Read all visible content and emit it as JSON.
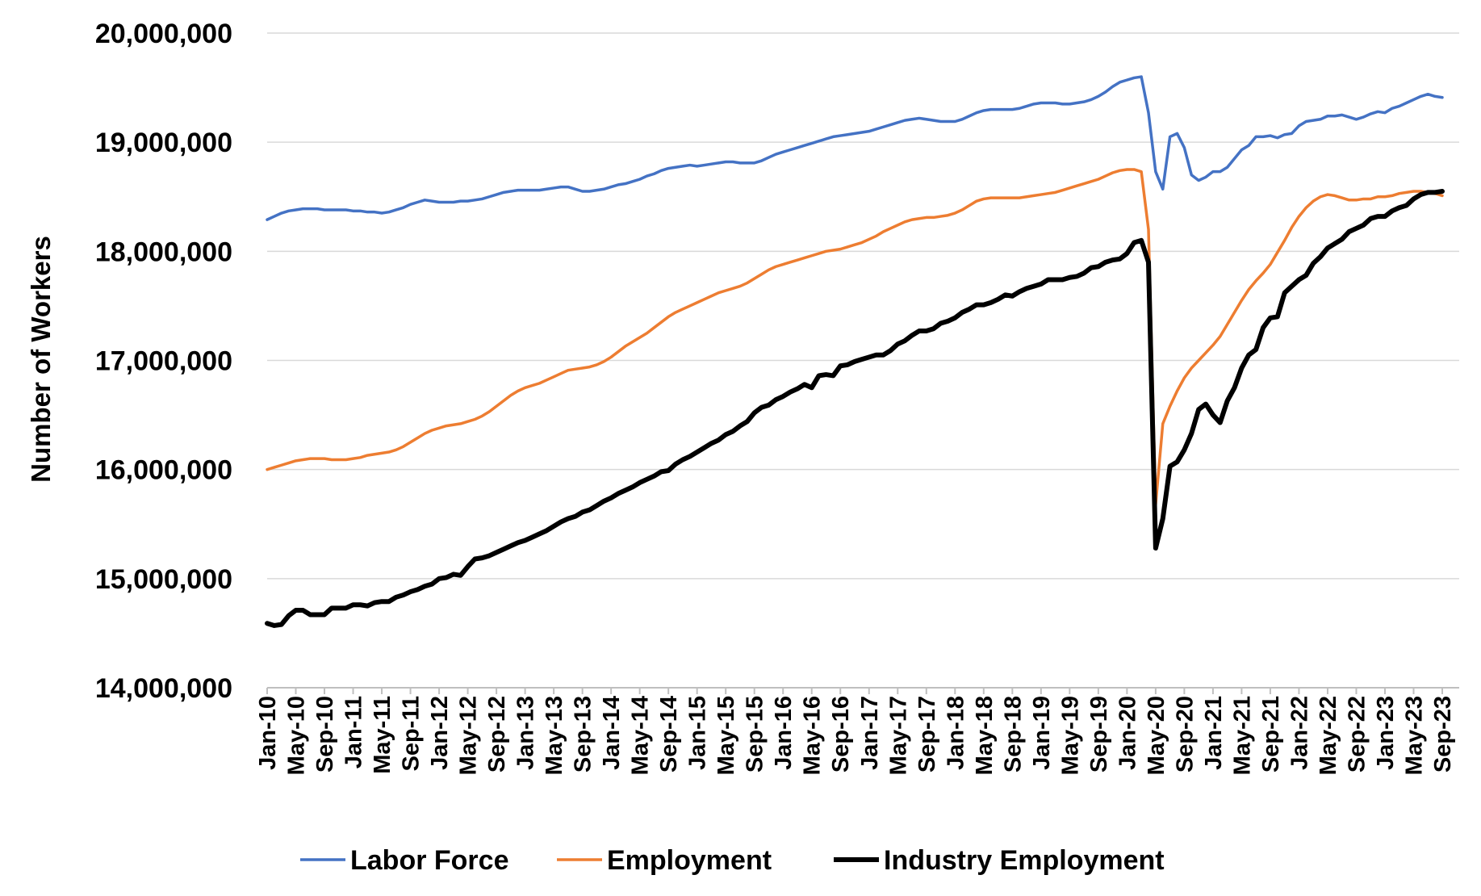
{
  "chart_data": {
    "type": "line",
    "ylabel": "Number of Workers",
    "legend": "bottom",
    "grid": true,
    "ylim": [
      14000000,
      20000000
    ],
    "yticks": [
      {
        "value": 14000000,
        "label": "14,000,000"
      },
      {
        "value": 15000000,
        "label": "15,000,000"
      },
      {
        "value": 16000000,
        "label": "16,000,000"
      },
      {
        "value": 17000000,
        "label": "17,000,000"
      },
      {
        "value": 18000000,
        "label": "18,000,000"
      },
      {
        "value": 19000000,
        "label": "19,000,000"
      },
      {
        "value": 20000000,
        "label": "20,000,000"
      }
    ],
    "categories": [
      "Jan-10",
      null,
      null,
      null,
      "May-10",
      null,
      null,
      null,
      "Sep-10",
      null,
      null,
      null,
      "Jan-11",
      null,
      null,
      null,
      "May-11",
      null,
      null,
      null,
      "Sep-11",
      null,
      null,
      null,
      "Jan-12",
      null,
      null,
      null,
      "May-12",
      null,
      null,
      null,
      "Sep-12",
      null,
      null,
      null,
      "Jan-13",
      null,
      null,
      null,
      "May-13",
      null,
      null,
      null,
      "Sep-13",
      null,
      null,
      null,
      "Jan-14",
      null,
      null,
      null,
      "May-14",
      null,
      null,
      null,
      "Sep-14",
      null,
      null,
      null,
      "Jan-15",
      null,
      null,
      null,
      "May-15",
      null,
      null,
      null,
      "Sep-15",
      null,
      null,
      null,
      "Jan-16",
      null,
      null,
      null,
      "May-16",
      null,
      null,
      null,
      "Sep-16",
      null,
      null,
      null,
      "Jan-17",
      null,
      null,
      null,
      "May-17",
      null,
      null,
      null,
      "Sep-17",
      null,
      null,
      null,
      "Jan-18",
      null,
      null,
      null,
      "May-18",
      null,
      null,
      null,
      "Sep-18",
      null,
      null,
      null,
      "Jan-19",
      null,
      null,
      null,
      "May-19",
      null,
      null,
      null,
      "Sep-19",
      null,
      null,
      null,
      "Jan-20",
      null,
      null,
      null,
      "May-20",
      null,
      null,
      null,
      "Sep-20",
      null,
      null,
      null,
      "Jan-21",
      null,
      null,
      null,
      "May-21",
      null,
      null,
      null,
      "Sep-21",
      null,
      null,
      null,
      "Jan-22",
      null,
      null,
      null,
      "May-22",
      null,
      null,
      null,
      "Sep-22",
      null,
      null,
      null,
      "Jan-23",
      null,
      null,
      null,
      "May-23",
      null,
      null,
      null,
      "Sep-23"
    ],
    "series": [
      {
        "name": "Labor Force",
        "color": "#4472c4",
        "width": 3.5,
        "values": [
          18290000,
          18320000,
          18350000,
          18370000,
          18380000,
          18390000,
          18390000,
          18390000,
          18380000,
          18380000,
          18380000,
          18380000,
          18370000,
          18370000,
          18360000,
          18360000,
          18350000,
          18360000,
          18380000,
          18400000,
          18430000,
          18450000,
          18470000,
          18460000,
          18450000,
          18450000,
          18450000,
          18460000,
          18460000,
          18470000,
          18480000,
          18500000,
          18520000,
          18540000,
          18550000,
          18560000,
          18560000,
          18560000,
          18560000,
          18570000,
          18580000,
          18590000,
          18590000,
          18570000,
          18550000,
          18550000,
          18560000,
          18570000,
          18590000,
          18610000,
          18620000,
          18640000,
          18660000,
          18690000,
          18710000,
          18740000,
          18760000,
          18770000,
          18780000,
          18790000,
          18780000,
          18790000,
          18800000,
          18810000,
          18820000,
          18820000,
          18810000,
          18810000,
          18810000,
          18830000,
          18860000,
          18890000,
          18910000,
          18930000,
          18950000,
          18970000,
          18990000,
          19010000,
          19030000,
          19050000,
          19060000,
          19070000,
          19080000,
          19090000,
          19100000,
          19120000,
          19140000,
          19160000,
          19180000,
          19200000,
          19210000,
          19220000,
          19210000,
          19200000,
          19190000,
          19190000,
          19190000,
          19210000,
          19240000,
          19270000,
          19290000,
          19300000,
          19300000,
          19300000,
          19300000,
          19310000,
          19330000,
          19350000,
          19360000,
          19360000,
          19360000,
          19350000,
          19350000,
          19360000,
          19370000,
          19390000,
          19420000,
          19460000,
          19510000,
          19550000,
          19570000,
          19590000,
          19600000,
          19270000,
          18730000,
          18570000,
          19050000,
          19080000,
          18950000,
          18700000,
          18650000,
          18680000,
          18730000,
          18730000,
          18770000,
          18850000,
          18930000,
          18970000,
          19050000,
          19050000,
          19060000,
          19040000,
          19070000,
          19080000,
          19150000,
          19190000,
          19200000,
          19210000,
          19240000,
          19240000,
          19250000,
          19230000,
          19210000,
          19230000,
          19260000,
          19280000,
          19270000,
          19310000,
          19330000,
          19360000,
          19390000,
          19420000,
          19440000,
          19420000,
          19410000
        ]
      },
      {
        "name": "Employment",
        "color": "#ed7d31",
        "width": 3.5,
        "values": [
          16000000,
          16020000,
          16040000,
          16060000,
          16080000,
          16090000,
          16100000,
          16100000,
          16100000,
          16090000,
          16090000,
          16090000,
          16100000,
          16110000,
          16130000,
          16140000,
          16150000,
          16160000,
          16180000,
          16210000,
          16250000,
          16290000,
          16330000,
          16360000,
          16380000,
          16400000,
          16410000,
          16420000,
          16440000,
          16460000,
          16490000,
          16530000,
          16580000,
          16630000,
          16680000,
          16720000,
          16750000,
          16770000,
          16790000,
          16820000,
          16850000,
          16880000,
          16910000,
          16920000,
          16930000,
          16940000,
          16960000,
          16990000,
          17030000,
          17080000,
          17130000,
          17170000,
          17210000,
          17250000,
          17300000,
          17350000,
          17400000,
          17440000,
          17470000,
          17500000,
          17530000,
          17560000,
          17590000,
          17620000,
          17640000,
          17660000,
          17680000,
          17710000,
          17750000,
          17790000,
          17830000,
          17860000,
          17880000,
          17900000,
          17920000,
          17940000,
          17960000,
          17980000,
          18000000,
          18010000,
          18020000,
          18040000,
          18060000,
          18080000,
          18110000,
          18140000,
          18180000,
          18210000,
          18240000,
          18270000,
          18290000,
          18300000,
          18310000,
          18310000,
          18320000,
          18330000,
          18350000,
          18380000,
          18420000,
          18460000,
          18480000,
          18490000,
          18490000,
          18490000,
          18490000,
          18490000,
          18500000,
          18510000,
          18520000,
          18530000,
          18540000,
          18560000,
          18580000,
          18600000,
          18620000,
          18640000,
          18660000,
          18690000,
          18720000,
          18740000,
          18750000,
          18750000,
          18730000,
          18200000,
          15680000,
          16420000,
          16580000,
          16720000,
          16840000,
          16930000,
          17000000,
          17070000,
          17140000,
          17220000,
          17330000,
          17440000,
          17550000,
          17650000,
          17730000,
          17800000,
          17880000,
          17990000,
          18100000,
          18220000,
          18320000,
          18400000,
          18460000,
          18500000,
          18520000,
          18510000,
          18490000,
          18470000,
          18470000,
          18480000,
          18480000,
          18500000,
          18500000,
          18510000,
          18530000,
          18540000,
          18550000,
          18550000,
          18540000,
          18530000,
          18510000
        ]
      },
      {
        "name": "Industry Employment",
        "color": "#000000",
        "width": 6,
        "values": [
          14590000,
          14570000,
          14580000,
          14660000,
          14710000,
          14710000,
          14670000,
          14670000,
          14670000,
          14730000,
          14730000,
          14730000,
          14760000,
          14760000,
          14750000,
          14780000,
          14790000,
          14790000,
          14830000,
          14850000,
          14880000,
          14900000,
          14930000,
          14950000,
          15000000,
          15010000,
          15040000,
          15030000,
          15110000,
          15180000,
          15190000,
          15210000,
          15240000,
          15270000,
          15300000,
          15330000,
          15350000,
          15380000,
          15410000,
          15440000,
          15480000,
          15520000,
          15550000,
          15570000,
          15610000,
          15630000,
          15670000,
          15710000,
          15740000,
          15780000,
          15810000,
          15840000,
          15880000,
          15910000,
          15940000,
          15980000,
          15990000,
          16050000,
          16090000,
          16120000,
          16160000,
          16200000,
          16240000,
          16270000,
          16320000,
          16350000,
          16400000,
          16440000,
          16520000,
          16570000,
          16590000,
          16640000,
          16670000,
          16710000,
          16740000,
          16780000,
          16750000,
          16860000,
          16870000,
          16860000,
          16950000,
          16960000,
          16990000,
          17010000,
          17030000,
          17050000,
          17050000,
          17090000,
          17150000,
          17180000,
          17230000,
          17270000,
          17270000,
          17290000,
          17340000,
          17360000,
          17390000,
          17440000,
          17470000,
          17510000,
          17510000,
          17530000,
          17560000,
          17600000,
          17590000,
          17630000,
          17660000,
          17680000,
          17700000,
          17740000,
          17740000,
          17740000,
          17760000,
          17770000,
          17800000,
          17850000,
          17860000,
          17900000,
          17920000,
          17930000,
          17980000,
          18080000,
          18100000,
          17900000,
          15280000,
          15550000,
          16030000,
          16070000,
          16180000,
          16330000,
          16550000,
          16600000,
          16500000,
          16430000,
          16630000,
          16750000,
          16930000,
          17050000,
          17100000,
          17300000,
          17390000,
          17400000,
          17620000,
          17680000,
          17740000,
          17780000,
          17890000,
          17950000,
          18030000,
          18070000,
          18110000,
          18180000,
          18210000,
          18240000,
          18300000,
          18320000,
          18320000,
          18370000,
          18400000,
          18420000,
          18480000,
          18520000,
          18540000,
          18540000,
          18550000
        ]
      }
    ]
  }
}
